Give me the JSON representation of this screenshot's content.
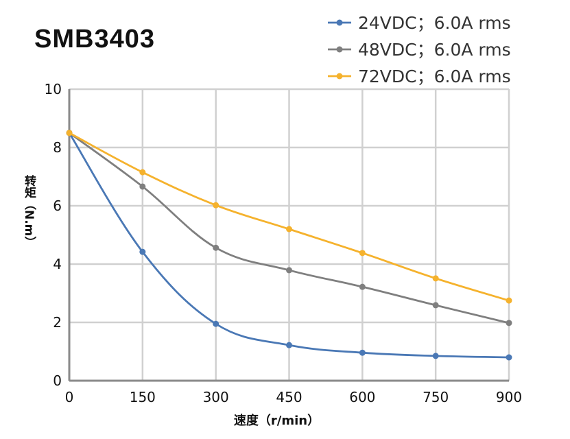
{
  "chart_data": {
    "type": "line",
    "title": "SMB3403",
    "xlabel": "速度（r/min）",
    "ylabel": "转矩（N.m）",
    "x": [
      0,
      150,
      300,
      450,
      600,
      750,
      900
    ],
    "xlim": [
      0,
      900
    ],
    "ylim": [
      0,
      10
    ],
    "xticks": [
      "0",
      "150",
      "300",
      "450",
      "600",
      "750",
      "900"
    ],
    "yticks": [
      "0",
      "2",
      "4",
      "6",
      "8",
      "10"
    ],
    "grid": true,
    "legend": "top-right",
    "series": [
      {
        "name": "24VDC；6.0A rms",
        "color": "#4a78b5",
        "values": [
          8.5,
          4.42,
          1.95,
          1.22,
          0.96,
          0.85,
          0.8
        ]
      },
      {
        "name": "48VDC；6.0A rms",
        "color": "#7f7f7f",
        "values": [
          8.5,
          6.66,
          4.56,
          3.79,
          3.22,
          2.59,
          1.98
        ]
      },
      {
        "name": "72VDC；6.0A rms",
        "color": "#f5b22d",
        "values": [
          8.5,
          7.15,
          6.02,
          5.2,
          4.38,
          3.51,
          2.75
        ]
      }
    ]
  }
}
